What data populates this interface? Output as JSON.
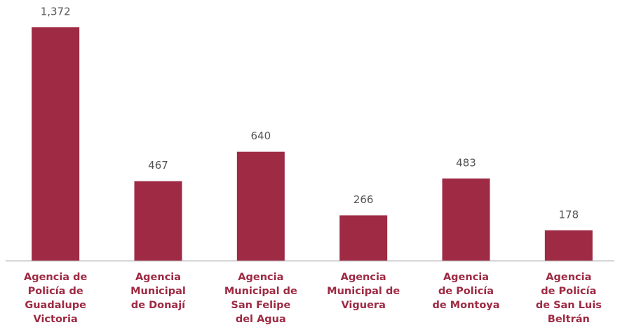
{
  "chart_data": {
    "type": "bar",
    "categories": [
      [
        "Agencia de",
        "Policía de",
        "Guadalupe",
        "Victoria"
      ],
      [
        "Agencia",
        "Municipal",
        "de Donají"
      ],
      [
        "Agencia",
        "Municipal de",
        "San Felipe",
        "del Agua"
      ],
      [
        "Agencia",
        "Municipal de",
        "Viguera"
      ],
      [
        "Agencia",
        "de Policía",
        "de Montoya"
      ],
      [
        "Agencia",
        "de Policía",
        "de San Luis",
        "Beltrán"
      ]
    ],
    "values": [
      1372,
      467,
      640,
      266,
      483,
      178
    ],
    "value_labels": [
      "1,372",
      "467",
      "640",
      "266",
      "483",
      "178"
    ],
    "color": "#9e2a43"
  }
}
